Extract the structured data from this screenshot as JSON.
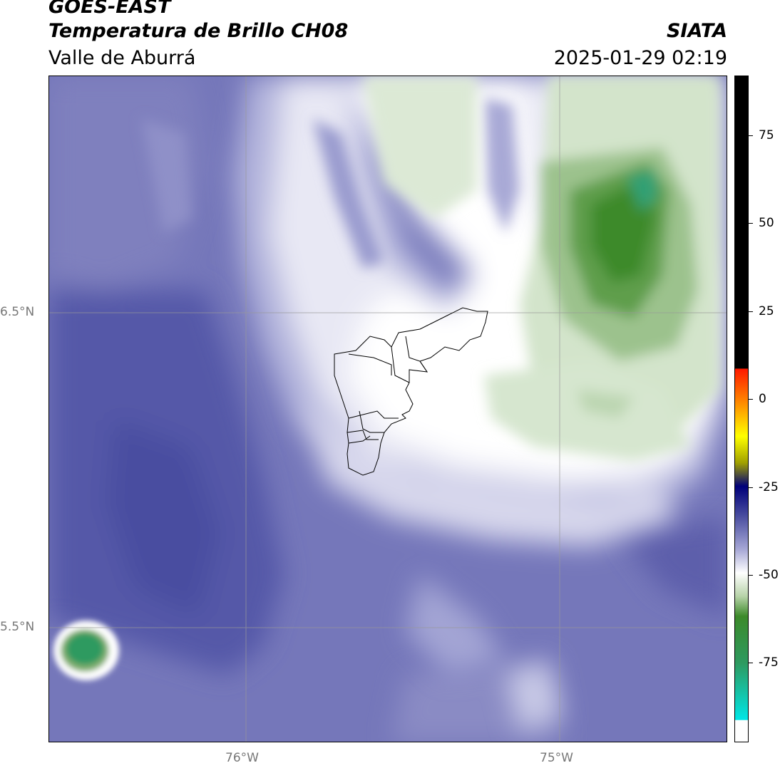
{
  "header": {
    "satellite": "GOES-EAST",
    "product": "Temperatura de Brillo CH08",
    "region": "Valle de Aburrá",
    "institution": "SIATA",
    "datetime": "2025-01-29 02:19"
  },
  "map": {
    "lat_labels": [
      "6.5°N",
      "5.5°N"
    ],
    "lon_labels": [
      "76°W",
      "75°W"
    ]
  },
  "colorbar": {
    "ticks": [
      "75",
      "50",
      "25",
      "0",
      "-25",
      "-50",
      "-75"
    ],
    "colors": {
      "purple_dark": "#4a4ea0",
      "purple_mid": "#6f71b6",
      "purple_light": "#a7a8d6",
      "white": "#ffffff",
      "green_light": "#d6e6cf",
      "green_mid": "#7fae6e",
      "green_dark": "#3c8a2a",
      "teal": "#30b28c",
      "cyan": "#00e6e6",
      "black": "#000000",
      "red": "#ff1a00",
      "orange": "#ff8c00",
      "yellow": "#ffff00",
      "navy": "#00007a"
    }
  }
}
